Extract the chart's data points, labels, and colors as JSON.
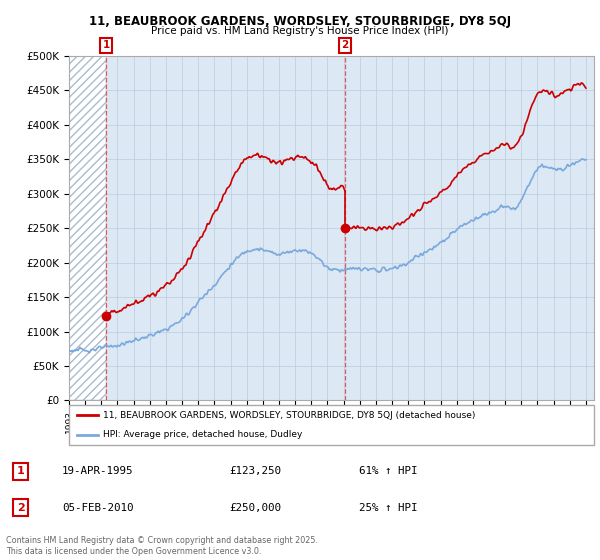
{
  "title_line1": "11, BEAUBROOK GARDENS, WORDSLEY, STOURBRIDGE, DY8 5QJ",
  "title_line2": "Price paid vs. HM Land Registry's House Price Index (HPI)",
  "xlim_start": 1993.0,
  "xlim_end": 2025.5,
  "ylim_min": 0,
  "ylim_max": 500000,
  "yticks": [
    0,
    50000,
    100000,
    150000,
    200000,
    250000,
    300000,
    350000,
    400000,
    450000,
    500000
  ],
  "ytick_labels": [
    "£0",
    "£50K",
    "£100K",
    "£150K",
    "£200K",
    "£250K",
    "£300K",
    "£350K",
    "£400K",
    "£450K",
    "£500K"
  ],
  "purchase1_year": 1995.29,
  "purchase1_price": 123250,
  "purchase2_year": 2010.09,
  "purchase2_price": 250000,
  "line_color_red": "#cc0000",
  "line_color_blue": "#7aaadd",
  "bg_color": "#dde8f5",
  "hatch_end_year": 1995.29,
  "grid_color": "#bbccdd",
  "legend_line1": "11, BEAUBROOK GARDENS, WORDSLEY, STOURBRIDGE, DY8 5QJ (detached house)",
  "legend_line2": "HPI: Average price, detached house, Dudley",
  "annotation1_date": "19-APR-1995",
  "annotation1_price": "£123,250",
  "annotation1_hpi": "61% ↑ HPI",
  "annotation2_date": "05-FEB-2010",
  "annotation2_price": "£250,000",
  "annotation2_hpi": "25% ↑ HPI",
  "footer": "Contains HM Land Registry data © Crown copyright and database right 2025.\nThis data is licensed under the Open Government Licence v3.0.",
  "xticks": [
    1993,
    1994,
    1995,
    1996,
    1997,
    1998,
    1999,
    2000,
    2001,
    2002,
    2003,
    2004,
    2005,
    2006,
    2007,
    2008,
    2009,
    2010,
    2011,
    2012,
    2013,
    2014,
    2015,
    2016,
    2017,
    2018,
    2019,
    2020,
    2021,
    2022,
    2023,
    2024,
    2025
  ],
  "hpi_data_x": [
    1993.0,
    1993.5,
    1994.0,
    1994.5,
    1995.0,
    1995.5,
    1996.0,
    1996.5,
    1997.0,
    1997.5,
    1998.0,
    1998.5,
    1999.0,
    1999.5,
    2000.0,
    2000.5,
    2001.0,
    2001.5,
    2002.0,
    2002.5,
    2003.0,
    2003.5,
    2004.0,
    2004.5,
    2005.0,
    2005.5,
    2006.0,
    2006.5,
    2007.0,
    2007.5,
    2008.0,
    2008.5,
    2009.0,
    2009.5,
    2010.0,
    2010.5,
    2011.0,
    2011.5,
    2012.0,
    2012.5,
    2013.0,
    2013.5,
    2014.0,
    2014.5,
    2015.0,
    2015.5,
    2016.0,
    2016.5,
    2017.0,
    2017.5,
    2018.0,
    2018.5,
    2019.0,
    2019.5,
    2020.0,
    2020.5,
    2021.0,
    2021.5,
    2022.0,
    2022.5,
    2023.0,
    2023.5,
    2024.0,
    2024.5,
    2025.0
  ],
  "hpi_data_y": [
    72000,
    73000,
    73000,
    74000,
    76000,
    78000,
    80000,
    83000,
    87000,
    90000,
    94000,
    98000,
    103000,
    110000,
    118000,
    130000,
    143000,
    155000,
    168000,
    182000,
    196000,
    208000,
    217000,
    220000,
    218000,
    215000,
    213000,
    215000,
    218000,
    218000,
    214000,
    205000,
    193000,
    190000,
    190000,
    191000,
    191000,
    190000,
    189000,
    190000,
    191000,
    195000,
    200000,
    208000,
    215000,
    220000,
    228000,
    237000,
    248000,
    255000,
    262000,
    268000,
    272000,
    277000,
    281000,
    278000,
    290000,
    315000,
    335000,
    340000,
    335000,
    338000,
    342000,
    348000,
    350000
  ],
  "red_data_x": [
    1995.29,
    1995.5,
    1996.0,
    1996.5,
    1997.0,
    1997.5,
    1998.0,
    1998.5,
    1999.0,
    1999.5,
    2000.0,
    2000.5,
    2001.0,
    2001.5,
    2002.0,
    2002.5,
    2003.0,
    2003.5,
    2004.0,
    2004.5,
    2005.0,
    2005.5,
    2006.0,
    2006.5,
    2007.0,
    2007.5,
    2008.0,
    2008.5,
    2009.0,
    2009.5,
    2010.09,
    2010.09,
    2010.5,
    2011.0,
    2011.5,
    2012.0,
    2012.5,
    2013.0,
    2013.5,
    2014.0,
    2014.5,
    2015.0,
    2015.5,
    2016.0,
    2016.5,
    2017.0,
    2017.5,
    2018.0,
    2018.5,
    2019.0,
    2019.5,
    2020.0,
    2020.5,
    2021.0,
    2021.5,
    2022.0,
    2022.5,
    2023.0,
    2023.5,
    2024.0,
    2024.5,
    2025.0
  ],
  "red_data_y": [
    123250,
    126000,
    130000,
    135000,
    141000,
    146000,
    152000,
    158000,
    167000,
    178000,
    191000,
    210000,
    232000,
    251000,
    272000,
    295000,
    317000,
    337000,
    351000,
    357000,
    353000,
    348000,
    345000,
    348000,
    353000,
    353000,
    346000,
    332000,
    312000,
    308000,
    308000,
    250000,
    251000,
    251000,
    250000,
    249000,
    250000,
    251000,
    257000,
    264000,
    274000,
    284000,
    290000,
    301000,
    312000,
    327000,
    337000,
    346000,
    354000,
    359000,
    366000,
    371000,
    367000,
    383000,
    416000,
    443000,
    449000,
    443000,
    447000,
    452000,
    460000,
    455000
  ]
}
